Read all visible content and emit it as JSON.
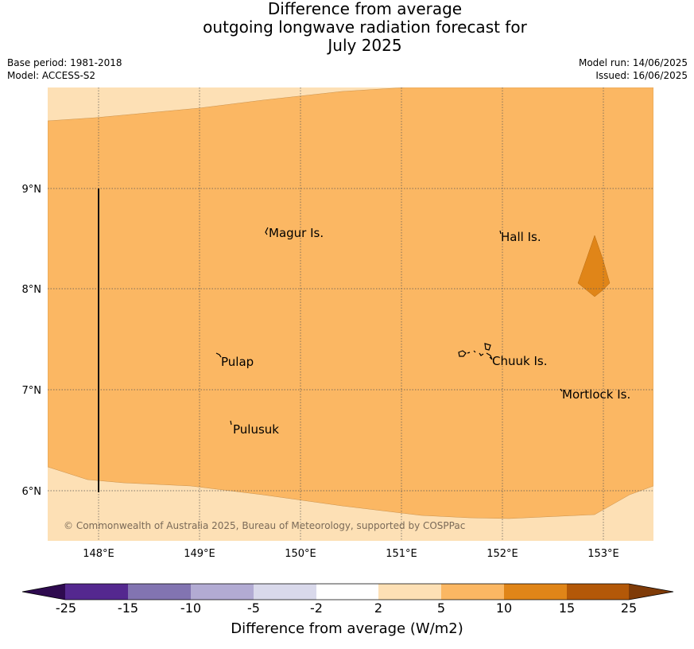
{
  "title": {
    "line1": "Difference from average",
    "line2": "outgoing longwave radiation forecast for",
    "line3": "July 2025"
  },
  "meta": {
    "base_period": "Base period: 1981-2018",
    "model": "Model: ACCESS-S2",
    "model_run": "Model run: 14/06/2025",
    "issued": "Issued: 16/06/2025"
  },
  "map": {
    "lon_ticks": [
      "148°E",
      "149°E",
      "150°E",
      "151°E",
      "152°E",
      "153°E"
    ],
    "lat_ticks": [
      "9°N",
      "8°N",
      "7°N",
      "6°N"
    ],
    "place_labels": [
      "Magur Is.",
      "Hall Is.",
      "Pulap",
      "Chuuk Is.",
      "Mortlock Is.",
      "Pulusuk"
    ],
    "copyright": "© Commonwealth of Australia 2025, Bureau of Meteorology, supported by COSPPac",
    "colors": {
      "band_2_5": "#fde0b5",
      "band_5_10": "#fbb763",
      "band_10_15": "#e08518"
    }
  },
  "colorbar": {
    "title": "Difference from average (W/m2)",
    "tick_labels": [
      "-25",
      "-15",
      "-10",
      "-5",
      "-2",
      "2",
      "5",
      "10",
      "15",
      "25"
    ],
    "colors": [
      "#2e0a4f",
      "#54288f",
      "#8274b1",
      "#b2abd3",
      "#d9d9eb",
      "#ffffff",
      "#fde0b5",
      "#fbb763",
      "#e08518",
      "#b35808",
      "#7f3b08"
    ]
  }
}
